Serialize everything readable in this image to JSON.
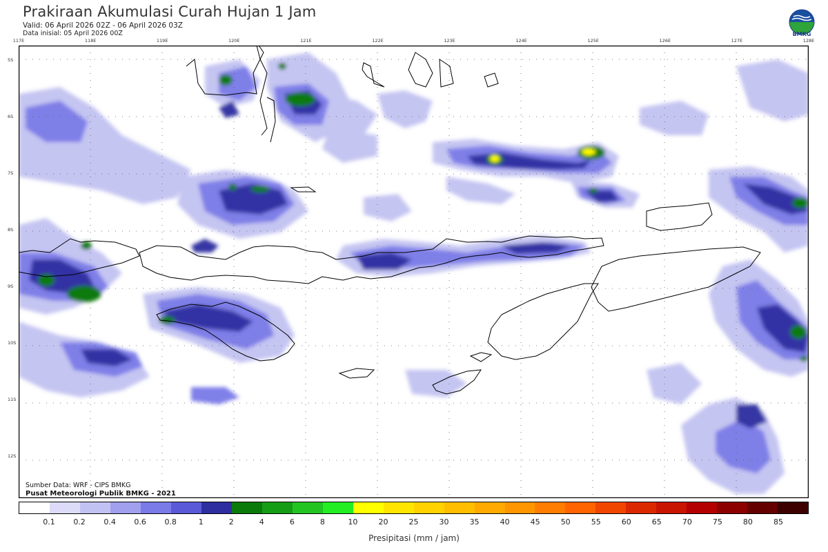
{
  "header": {
    "title": "Prakiraan Akumulasi Curah Hujan 1 Jam",
    "valid": "Valid: 06 April 2026 02Z - 06 April 2026 03Z",
    "initial": "Data inisial: 05 April 2026 00Z"
  },
  "logo": {
    "text": "BMKG",
    "icon": "bmkg-logo-icon"
  },
  "map": {
    "lon_labels": [
      "117E",
      "118E",
      "119E",
      "120E",
      "121E",
      "122E",
      "123E",
      "124E",
      "125E",
      "126E",
      "127E",
      "128E"
    ],
    "lat_labels": [
      "5S",
      "6S",
      "7S",
      "8S",
      "9S",
      "10S",
      "11S",
      "12S"
    ],
    "lon_range": [
      117,
      128
    ],
    "lat_range": [
      -4.75,
      -12.75
    ],
    "grid": "dotted"
  },
  "footer": {
    "source": "Sumber Data: WRF - CIPS BMKG",
    "credit": "Pusat Meteorologi Publik BMKG - 2021"
  },
  "colorbar": {
    "title": "Presipitasi (mm / jam)",
    "ticks": [
      "0.1",
      "0.2",
      "0.4",
      "0.6",
      "0.8",
      "1",
      "2",
      "4",
      "6",
      "8",
      "10",
      "20",
      "25",
      "30",
      "35",
      "40",
      "45",
      "50",
      "55",
      "60",
      "65",
      "70",
      "75",
      "80",
      "85"
    ],
    "colors": [
      "#ffffff",
      "#dcdcf8",
      "#c2c2f2",
      "#a0a0ee",
      "#7a7ae8",
      "#5a5ad8",
      "#2e2ea0",
      "#0a7a0a",
      "#159e15",
      "#22c422",
      "#22ee22",
      "#ffff00",
      "#ffe600",
      "#ffd200",
      "#ffbe00",
      "#ffaa00",
      "#ff9600",
      "#ff7d00",
      "#ff6400",
      "#f04600",
      "#dc2800",
      "#c81400",
      "#b40000",
      "#8c0000",
      "#640000",
      "#3c0000"
    ]
  }
}
